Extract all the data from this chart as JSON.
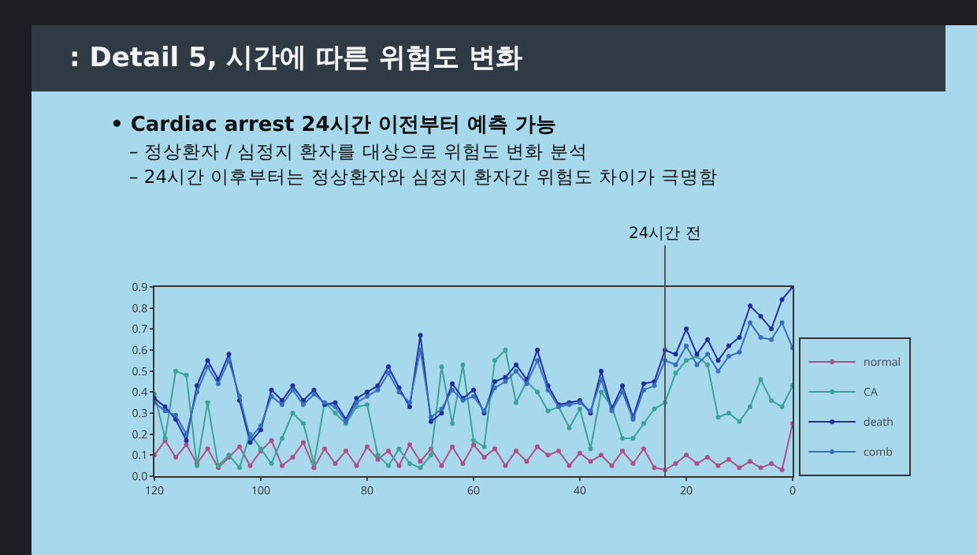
{
  "chart_data": {
    "type": "line",
    "title": ": Detail 5, 시간에 따른 위험도 변화",
    "subtitle": "• Cardiac arrest 24시간 이전부터 예측 가능",
    "annotations": [
      "– 정상환자 / 심정지 환자를 대상으로 위험도 변화 분석",
      "– 24시간 이후부터는 정상환자와 심정지 환자간 위험도 차이가 극명함"
    ],
    "x": [
      120,
      118,
      116,
      114,
      112,
      110,
      108,
      106,
      104,
      102,
      100,
      98,
      96,
      94,
      92,
      90,
      88,
      86,
      84,
      82,
      80,
      78,
      76,
      74,
      72,
      70,
      68,
      66,
      64,
      62,
      60,
      58,
      56,
      54,
      52,
      50,
      48,
      46,
      44,
      42,
      40,
      38,
      36,
      34,
      32,
      30,
      28,
      26,
      24,
      22,
      20,
      18,
      16,
      14,
      12,
      10,
      8,
      6,
      4,
      2,
      0
    ],
    "xlim": [
      120,
      0
    ],
    "xticks": [
      120,
      100,
      80,
      60,
      40,
      20,
      0
    ],
    "ylim": [
      0,
      0.9
    ],
    "yticks": [
      {
        "value": 0,
        "label": "0.0"
      },
      0.1,
      0.2,
      0.3,
      0.4,
      0.5,
      0.6,
      0.7,
      0.8,
      0.9
    ],
    "series": [
      {
        "name": "normal",
        "color": "#b0508a",
        "values": [
          0.1,
          0.17,
          0.09,
          0.15,
          0.06,
          0.13,
          0.04,
          0.09,
          0.14,
          0.05,
          0.12,
          0.17,
          0.05,
          0.09,
          0.16,
          0.04,
          0.13,
          0.06,
          0.12,
          0.05,
          0.14,
          0.08,
          0.12,
          0.05,
          0.15,
          0.07,
          0.13,
          0.05,
          0.14,
          0.06,
          0.15,
          0.09,
          0.13,
          0.05,
          0.12,
          0.07,
          0.14,
          0.1,
          0.12,
          0.05,
          0.11,
          0.07,
          0.1,
          0.05,
          0.12,
          0.06,
          0.13,
          0.04,
          0.03,
          0.06,
          0.1,
          0.06,
          0.09,
          0.05,
          0.08,
          0.04,
          0.07,
          0.04,
          0.06,
          0.03,
          0.25
        ]
      },
      {
        "name": "CA",
        "color": "#3aa39a",
        "values": [
          0.39,
          0.18,
          0.5,
          0.48,
          0.05,
          0.35,
          0.05,
          0.1,
          0.04,
          0.2,
          0.13,
          0.06,
          0.18,
          0.3,
          0.25,
          0.06,
          0.35,
          0.3,
          0.25,
          0.33,
          0.34,
          0.1,
          0.05,
          0.13,
          0.06,
          0.04,
          0.1,
          0.52,
          0.25,
          0.53,
          0.17,
          0.14,
          0.55,
          0.6,
          0.35,
          0.45,
          0.4,
          0.31,
          0.33,
          0.23,
          0.32,
          0.13,
          0.4,
          0.33,
          0.18,
          0.18,
          0.25,
          0.32,
          0.35,
          0.49,
          0.55,
          0.57,
          0.53,
          0.28,
          0.3,
          0.26,
          0.33,
          0.46,
          0.36,
          0.33,
          0.43
        ]
      },
      {
        "name": "death",
        "color": "#1f2fa0",
        "values": [
          0.37,
          0.33,
          0.27,
          0.17,
          0.43,
          0.55,
          0.46,
          0.58,
          0.36,
          0.16,
          0.22,
          0.41,
          0.36,
          0.43,
          0.36,
          0.41,
          0.34,
          0.35,
          0.27,
          0.37,
          0.4,
          0.43,
          0.52,
          0.42,
          0.33,
          0.67,
          0.26,
          0.3,
          0.44,
          0.37,
          0.41,
          0.3,
          0.45,
          0.47,
          0.53,
          0.46,
          0.6,
          0.43,
          0.34,
          0.35,
          0.36,
          0.3,
          0.5,
          0.32,
          0.43,
          0.28,
          0.44,
          0.45,
          0.6,
          0.58,
          0.7,
          0.58,
          0.65,
          0.55,
          0.62,
          0.66,
          0.81,
          0.76,
          0.7,
          0.84,
          0.9
        ]
      },
      {
        "name": "comb",
        "color": "#3a6fc0",
        "values": [
          0.35,
          0.31,
          0.29,
          0.2,
          0.4,
          0.52,
          0.44,
          0.55,
          0.38,
          0.18,
          0.24,
          0.38,
          0.34,
          0.41,
          0.34,
          0.39,
          0.35,
          0.33,
          0.26,
          0.35,
          0.38,
          0.41,
          0.49,
          0.4,
          0.35,
          0.6,
          0.28,
          0.32,
          0.41,
          0.36,
          0.38,
          0.31,
          0.42,
          0.45,
          0.5,
          0.44,
          0.55,
          0.41,
          0.33,
          0.34,
          0.35,
          0.31,
          0.46,
          0.31,
          0.4,
          0.27,
          0.41,
          0.43,
          0.55,
          0.53,
          0.62,
          0.53,
          0.58,
          0.5,
          0.57,
          0.59,
          0.73,
          0.66,
          0.65,
          0.73,
          0.61
        ]
      }
    ],
    "ref_lines": [
      {
        "axis": "x",
        "value": 24,
        "label": "24시간 전",
        "color": "#555555"
      }
    ],
    "legend": "bottom right",
    "marker": "circle",
    "line_style": "solid"
  }
}
